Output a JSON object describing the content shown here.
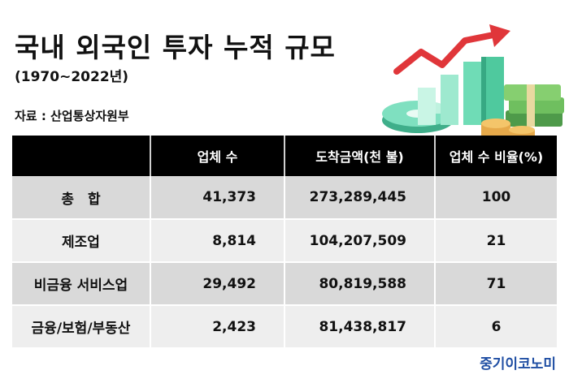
{
  "title": "국내 외국인 투자 누적 규모",
  "subtitle": "(1970~2022년)",
  "source": "자료 : 산업통상자원부",
  "table": {
    "headers": [
      "",
      "업체 수",
      "도착금액(천 불)",
      "업체 수 비율(%)"
    ],
    "rows": [
      {
        "label": "총　합",
        "companies": "41,373",
        "amount": "273,289,445",
        "ratio": "100"
      },
      {
        "label": "제조업",
        "companies": "8,814",
        "amount": "104,207,509",
        "ratio": "21"
      },
      {
        "label": "비금융 서비스업",
        "companies": "29,492",
        "amount": "80,819,588",
        "ratio": "71"
      },
      {
        "label": "금융/보험/부동산",
        "companies": "2,423",
        "amount": "81,438,817",
        "ratio": "6"
      }
    ]
  },
  "brand": "중기이코노미",
  "colors": {
    "header_bg": "#000000",
    "row_odd": "#d9d9d9",
    "row_even": "#eeeeee",
    "brand": "#1f4ea3",
    "arrow": "#e0363a",
    "bars": "#5fd3a8"
  },
  "illustration_icon": "growth-chart-with-money-icon"
}
